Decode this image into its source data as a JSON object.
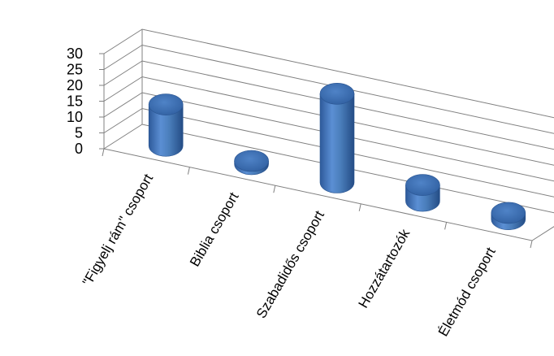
{
  "chart_data": {
    "type": "bar",
    "style": "3d-cylinder",
    "categories": [
      "\"Figyelj rám\" csoport",
      "Biblia csoport",
      "Szabadidős csoport",
      "Hozzátartozók",
      "Életmód csoport"
    ],
    "values": [
      13,
      1,
      28,
      5,
      2
    ],
    "ylim": [
      0,
      30
    ],
    "yticks": [
      0,
      5,
      10,
      15,
      20,
      25,
      30
    ],
    "grid": true,
    "legend": "none",
    "color": "#4a7ebb"
  }
}
